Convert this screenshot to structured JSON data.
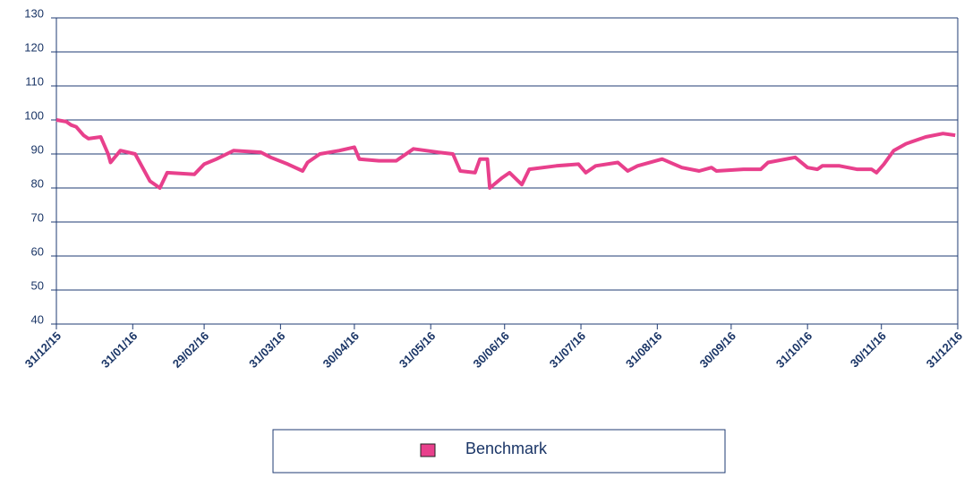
{
  "chart_data": {
    "type": "line",
    "x": [
      "31/12/15",
      "04/01/16",
      "06/01/16",
      "08/01/16",
      "11/01/16",
      "13/01/16",
      "18/01/16",
      "21/01/16",
      "22/01/16",
      "26/01/16",
      "01/02/16",
      "07/02/16",
      "11/02/16",
      "14/02/16",
      "25/02/16",
      "29/02/16",
      "05/03/16",
      "12/03/16",
      "23/03/16",
      "27/03/16",
      "03/04/16",
      "09/04/16",
      "11/04/16",
      "16/04/16",
      "24/04/16",
      "30/04/16",
      "02/05/16",
      "10/05/16",
      "17/05/16",
      "24/05/16",
      "29/05/16",
      "03/06/16",
      "09/06/16",
      "12/06/16",
      "18/06/16",
      "20/06/16",
      "23/06/16",
      "24/06/16",
      "29/06/16",
      "02/07/16",
      "07/07/16",
      "10/07/16",
      "21/07/16",
      "30/07/16",
      "02/08/16",
      "06/08/16",
      "15/08/16",
      "19/08/16",
      "23/08/16",
      "02/09/16",
      "10/09/16",
      "17/09/16",
      "22/09/16",
      "24/09/16",
      "05/10/16",
      "12/10/16",
      "15/10/16",
      "26/10/16",
      "31/10/16",
      "04/11/16",
      "06/11/16",
      "13/11/16",
      "20/11/16",
      "26/11/16",
      "28/11/16",
      "01/12/16",
      "05/12/16",
      "10/12/16",
      "18/12/16",
      "25/12/16",
      "30/12/16"
    ],
    "series": [
      {
        "name": "Benchmark",
        "color": "#e8408c",
        "values": [
          100,
          99.5,
          98.5,
          98,
          95.5,
          94.5,
          95,
          90,
          87.5,
          91,
          90,
          82,
          80,
          84.5,
          84,
          87,
          88.5,
          91,
          90.5,
          89,
          87,
          85,
          87.5,
          90,
          91,
          92,
          88.5,
          88,
          88,
          91.5,
          91,
          90.5,
          90,
          85,
          84.5,
          88.5,
          88.5,
          80,
          83,
          84.5,
          81,
          85.5,
          86.5,
          87,
          84.5,
          86.5,
          87.5,
          85,
          86.5,
          88.5,
          86,
          85,
          86,
          85,
          85.5,
          85.5,
          87.5,
          89,
          86,
          85.5,
          86.5,
          86.5,
          85.5,
          85.5,
          84.5,
          87,
          91,
          93,
          95,
          96,
          95.5
        ]
      }
    ],
    "xlim": [
      "31/12/15",
      "31/12/16"
    ],
    "xticks": [
      "31/12/15",
      "31/01/16",
      "29/02/16",
      "31/03/16",
      "30/04/16",
      "31/05/16",
      "30/06/16",
      "31/07/16",
      "31/08/16",
      "30/09/16",
      "31/10/16",
      "30/11/16",
      "31/12/16"
    ],
    "ylim": [
      40,
      130
    ],
    "yticks": [
      40,
      50,
      60,
      70,
      80,
      90,
      100,
      110,
      120,
      130
    ],
    "grid": true,
    "legend": "bottom"
  }
}
